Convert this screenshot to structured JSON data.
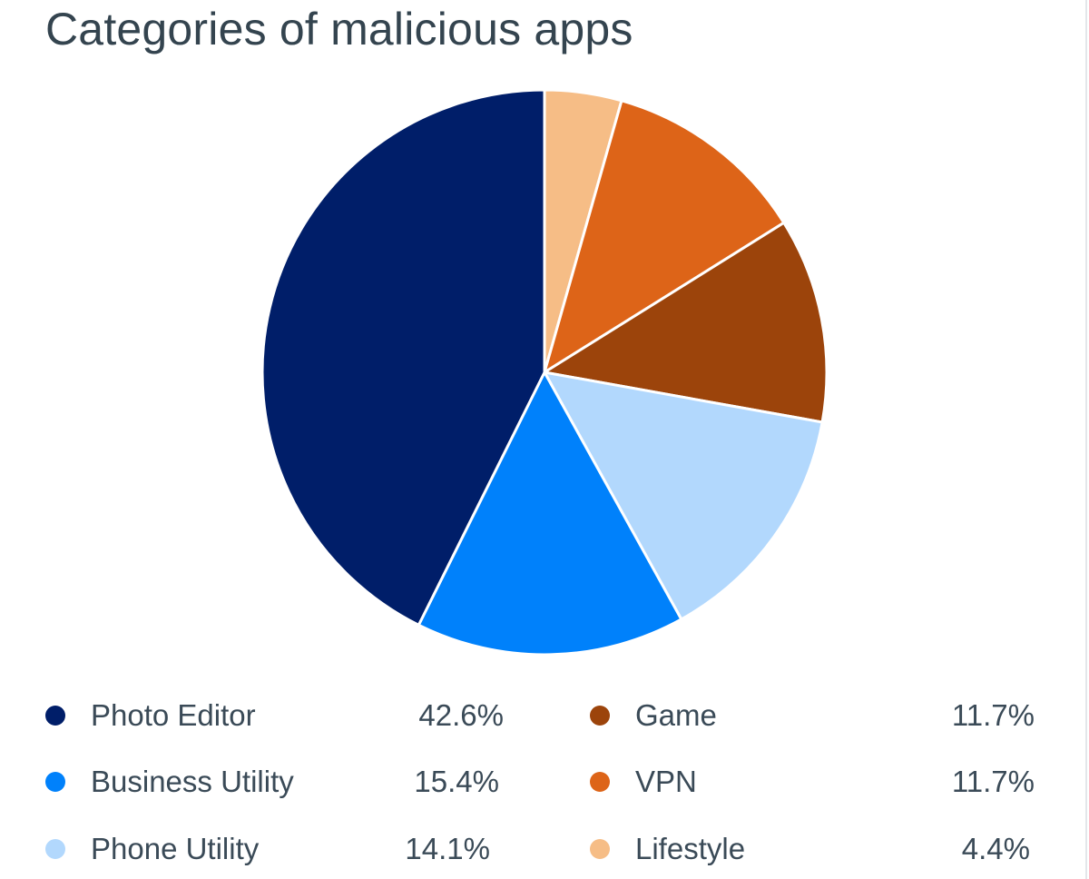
{
  "chart_data": {
    "type": "pie",
    "title": "Categories of malicious apps",
    "slices": [
      {
        "label": "Lifestyle",
        "value": 4.4,
        "display": "4.4%",
        "color": "#f6bd86"
      },
      {
        "label": "VPN",
        "value": 11.7,
        "display": "11.7%",
        "color": "#dd6418"
      },
      {
        "label": "Game",
        "value": 11.7,
        "display": "11.7%",
        "color": "#9c440b"
      },
      {
        "label": "Phone Utility",
        "value": 14.1,
        "display": "14.1%",
        "color": "#b2d8fd"
      },
      {
        "label": "Business Utility",
        "value": 15.4,
        "display": "15.4%",
        "color": "#0081fb"
      },
      {
        "label": "Photo Editor",
        "value": 42.6,
        "display": "42.6%",
        "color": "#001e69"
      }
    ],
    "start": "12 o'clock",
    "direction": "clockwise",
    "legend_position": "bottom",
    "legend": {
      "left_column": [
        {
          "label": "Photo Editor",
          "value": "42.6%",
          "color": "#001e69"
        },
        {
          "label": "Business Utility",
          "value": "15.4%",
          "color": "#0081fb"
        },
        {
          "label": "Phone Utility",
          "value": "14.1%",
          "color": "#b2d8fd"
        }
      ],
      "right_column": [
        {
          "label": "Game",
          "value": "11.7%",
          "color": "#9c440b"
        },
        {
          "label": "VPN",
          "value": "11.7%",
          "color": "#dd6418"
        },
        {
          "label": "Lifestyle",
          "value": "4.4%",
          "color": "#f6bd86"
        }
      ]
    }
  }
}
